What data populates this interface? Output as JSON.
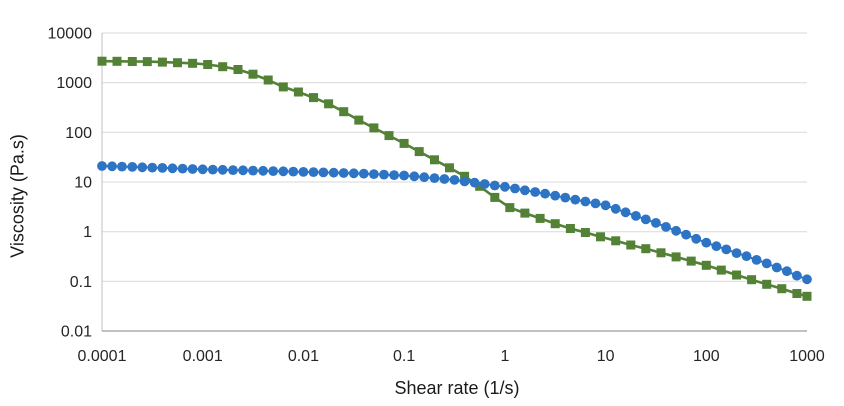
{
  "chart_data": {
    "type": "line",
    "subtype": "log-log line with markers",
    "title": "",
    "xlabel": "Shear rate (1/s)",
    "ylabel": "Viscosity (Pa.s)",
    "legend": "none",
    "grid": "horizontal-major-only",
    "x_axis": {
      "scale": "log",
      "range": [
        0.0001,
        1000
      ],
      "ticks": [
        {
          "label": "0.0001",
          "value": 0.0001
        },
        {
          "label": "0.001",
          "value": 0.001
        },
        {
          "label": "0.01",
          "value": 0.01
        },
        {
          "label": "0.1",
          "value": 0.1
        },
        {
          "label": "1",
          "value": 1
        },
        {
          "label": "10",
          "value": 10
        },
        {
          "label": "100",
          "value": 100
        },
        {
          "label": "1000",
          "value": 1000
        }
      ]
    },
    "y_axis": {
      "scale": "log",
      "range": [
        0.01,
        10000
      ],
      "ticks": [
        {
          "label": "10000",
          "value": 10000
        },
        {
          "label": "1000",
          "value": 1000
        },
        {
          "label": "100",
          "value": 100
        },
        {
          "label": "10",
          "value": 10
        },
        {
          "label": "1",
          "value": 1
        },
        {
          "label": "0.1",
          "value": 0.1
        },
        {
          "label": "0.01",
          "value": 0.01
        }
      ]
    },
    "series": [
      {
        "name": "green-squares",
        "marker": "square",
        "color": "#538135",
        "line_width": 2.6,
        "marker_size": 9,
        "x": [
          0.0001,
          0.000141,
          0.0002,
          0.000282,
          0.000398,
          0.000562,
          0.000794,
          0.00112,
          0.00158,
          0.00224,
          0.00316,
          0.00447,
          0.00631,
          0.00891,
          0.0126,
          0.0178,
          0.0251,
          0.0355,
          0.0501,
          0.0708,
          0.1,
          0.141,
          0.2,
          0.282,
          0.398,
          0.562,
          0.794,
          1.12,
          1.58,
          2.24,
          3.16,
          4.47,
          6.31,
          8.91,
          12.6,
          17.8,
          25.1,
          35.5,
          50.1,
          70.8,
          100,
          141,
          200,
          282,
          398,
          562,
          794,
          1000
        ],
        "y": [
          2700,
          2690,
          2670,
          2655,
          2600,
          2520,
          2450,
          2320,
          2100,
          1840,
          1480,
          1130,
          820,
          650,
          500,
          375,
          260,
          176,
          123,
          86,
          60,
          41,
          28,
          19.3,
          13,
          8.2,
          4.9,
          3.05,
          2.36,
          1.85,
          1.45,
          1.16,
          0.96,
          0.79,
          0.655,
          0.54,
          0.455,
          0.375,
          0.31,
          0.255,
          0.21,
          0.168,
          0.134,
          0.108,
          0.087,
          0.071,
          0.057,
          0.05
        ]
      },
      {
        "name": "blue-circles",
        "marker": "circle",
        "color": "#2E74C4",
        "line_width": 2,
        "marker_size": 9.8,
        "x": [
          0.0001,
          0.000126,
          0.000158,
          0.0002,
          0.000251,
          0.000316,
          0.000398,
          0.000501,
          0.000631,
          0.000794,
          0.001,
          0.00126,
          0.00158,
          0.002,
          0.00251,
          0.00316,
          0.00398,
          0.00501,
          0.00631,
          0.00794,
          0.01,
          0.0126,
          0.0158,
          0.02,
          0.0251,
          0.0316,
          0.0398,
          0.0501,
          0.0631,
          0.0794,
          0.1,
          0.126,
          0.158,
          0.2,
          0.251,
          0.316,
          0.398,
          0.501,
          0.631,
          0.794,
          1,
          1.26,
          1.58,
          2,
          2.51,
          3.16,
          3.98,
          5.01,
          6.31,
          7.94,
          10,
          12.6,
          15.8,
          20,
          25.1,
          31.6,
          39.8,
          50.1,
          63.1,
          79.4,
          100,
          126,
          158,
          200,
          251,
          316,
          398,
          501,
          631,
          794,
          1000
        ],
        "y": [
          21.0,
          20.7,
          20.4,
          20.1,
          19.8,
          19.5,
          19.2,
          18.9,
          18.6,
          18.3,
          18.0,
          17.8,
          17.6,
          17.4,
          17.2,
          17.0,
          16.8,
          16.6,
          16.4,
          16.2,
          16.0,
          15.8,
          15.6,
          15.4,
          15.2,
          15.0,
          14.7,
          14.4,
          14.1,
          13.8,
          13.5,
          13.0,
          12.5,
          12.0,
          11.5,
          11.0,
          10.3,
          9.7,
          9.1,
          8.5,
          8.0,
          7.4,
          6.8,
          6.3,
          5.8,
          5.3,
          4.85,
          4.4,
          4.05,
          3.7,
          3.4,
          2.89,
          2.45,
          2.08,
          1.77,
          1.5,
          1.25,
          1.04,
          0.87,
          0.72,
          0.6,
          0.51,
          0.44,
          0.37,
          0.32,
          0.27,
          0.23,
          0.19,
          0.16,
          0.13,
          0.11
        ]
      }
    ],
    "colors": {
      "gridline": "#d9d9d9",
      "x_axis_line": "#9c9c9c",
      "y_axis_line": "#c0c0c0",
      "tick_text": "#262626"
    }
  }
}
